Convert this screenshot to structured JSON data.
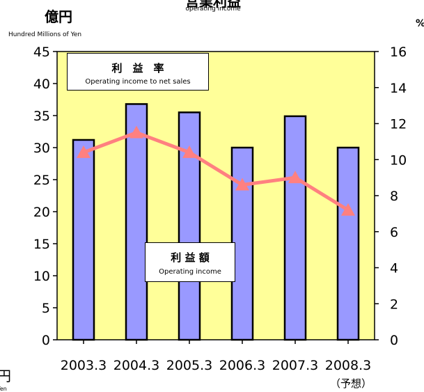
{
  "header": {
    "title": "営業利益",
    "title_en": "operating income",
    "left_unit": "億円",
    "left_unit_en": "Hundred Millions of  Yen",
    "right_unit": "%",
    "bottom_left_unit": "円",
    "bottom_left_unit_en": "Yen"
  },
  "chart_data": {
    "type": "bar",
    "categories": [
      "2003.3",
      "2004.3",
      "2005.3",
      "2006.3",
      "2007.3",
      "2008.3"
    ],
    "category_notes": [
      "",
      "",
      "",
      "",
      "",
      "（予想）"
    ],
    "series": [
      {
        "name": "利 益 額",
        "name_en": "Operating income",
        "type": "bar",
        "axis": "left",
        "values": [
          31.2,
          36.8,
          35.5,
          30.0,
          34.9,
          30.0
        ]
      },
      {
        "name": "利　益　率",
        "name_en": "Operating income to net sales",
        "type": "line",
        "axis": "right",
        "values": [
          10.4,
          11.5,
          10.4,
          8.6,
          9.0,
          7.2
        ]
      }
    ],
    "ylim_left": [
      0,
      45
    ],
    "ylim_right": [
      0,
      16
    ],
    "yticks_left": [
      0,
      5,
      10,
      15,
      20,
      25,
      30,
      35,
      40,
      45
    ],
    "yticks_right": [
      0,
      2,
      4,
      6,
      8,
      10,
      12,
      14,
      16
    ],
    "grid": false,
    "colors": {
      "plot_bg": "#ffff99",
      "bar_fill": "#9999ff",
      "line": "#ff8080"
    }
  }
}
